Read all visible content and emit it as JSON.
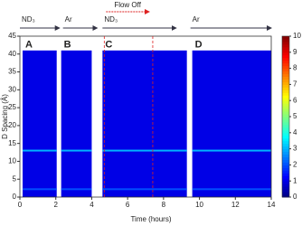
{
  "chart_data": {
    "type": "heatmap",
    "xlabel": "Time (hours)",
    "ylabel": "D Spacing (Å)",
    "xlim": [
      0,
      14
    ],
    "xticks": [
      0,
      2,
      4,
      6,
      8,
      10,
      12,
      14
    ],
    "ylim": [
      0,
      45
    ],
    "yticks": [
      0,
      5,
      10,
      15,
      20,
      25,
      30,
      35,
      40,
      45
    ],
    "clim": [
      0,
      10
    ],
    "cticks": [
      0,
      1,
      2,
      3,
      4,
      5,
      6,
      7,
      8,
      9,
      10
    ],
    "colormap": "jet",
    "panels": [
      {
        "label": "A",
        "start": 0.15,
        "end": 2.05,
        "top": 41,
        "value": 1
      },
      {
        "label": "B",
        "start": 2.3,
        "end": 4.0,
        "top": 41,
        "value": 1
      },
      {
        "label": "C",
        "start": 4.6,
        "end": 9.3,
        "top": 41,
        "value": 1
      },
      {
        "label": "D",
        "start": 9.6,
        "end": 14,
        "top": 41,
        "value": 1
      }
    ],
    "bands": [
      {
        "d": 13,
        "value": 3
      },
      {
        "d": 2.2,
        "value": 2
      }
    ],
    "segments": [
      {
        "label": "ND₃",
        "start": 0,
        "end": 2.2
      },
      {
        "label": "Ar",
        "start": 2.4,
        "end": 4.3
      },
      {
        "label": "ND₃",
        "start": 4.6,
        "end": 8.7
      },
      {
        "label": "Ar",
        "start": 9.5,
        "end": 14
      }
    ],
    "annotation": {
      "text": "Flow Off",
      "start": 4.8,
      "end": 7.2
    },
    "markers": [
      4.7,
      7.4
    ]
  }
}
